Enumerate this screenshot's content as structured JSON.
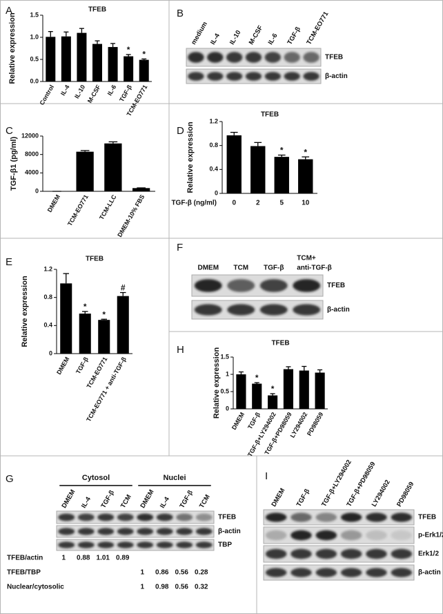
{
  "chart_data": [
    {
      "panel": "A",
      "type": "bar",
      "title": "TFEB",
      "ylabel": "Relative expression",
      "categories": [
        "Control",
        "IL-4",
        "IL-10",
        "M-CSF",
        "IL-6",
        "TGF-β",
        "TCM-EO771"
      ],
      "values": [
        1.01,
        1.02,
        1.1,
        0.85,
        0.78,
        0.57,
        0.49
      ],
      "errors": [
        0.12,
        0.1,
        0.1,
        0.07,
        0.08,
        0.04,
        0.02
      ],
      "significance": [
        null,
        null,
        null,
        null,
        null,
        "*",
        "*"
      ],
      "color": "#000000",
      "ylim": [
        0,
        1.5
      ],
      "yticks": [
        {
          "value": 0,
          "label": "0.0"
        },
        {
          "value": 0.5,
          "label": "0.5"
        },
        {
          "value": 1,
          "label": "1.0"
        },
        {
          "value": 1.5,
          "label": "1.5"
        }
      ]
    },
    {
      "panel": "C",
      "type": "bar",
      "ylabel": "TGF-β1 (pg/ml)",
      "categories": [
        "DMEM",
        "TCM-EO771",
        "TCM-LLC",
        "DMEM-10% FBS"
      ],
      "values": [
        0,
        8600,
        10400,
        700
      ],
      "errors": [
        0,
        250,
        350,
        50
      ],
      "color": "#000000",
      "ylim": [
        0,
        12000
      ],
      "yticks": [
        0,
        4000,
        8000,
        12000
      ]
    },
    {
      "panel": "D",
      "type": "bar",
      "title": "TFEB",
      "ylabel": "Relative expression",
      "xlabel": "TGF-β (ng/ml)",
      "categories": [
        "0",
        "2",
        "5",
        "10"
      ],
      "values": [
        0.97,
        0.79,
        0.61,
        0.57
      ],
      "errors": [
        0.05,
        0.06,
        0.03,
        0.04
      ],
      "significance": [
        null,
        null,
        "*",
        "*"
      ],
      "color": "#000000",
      "ylim": [
        0,
        1.2
      ],
      "yticks": [
        0,
        0.4,
        0.8,
        1.2
      ]
    },
    {
      "panel": "E",
      "type": "bar",
      "title": "TFEB",
      "ylabel": "Relative expression",
      "categories": [
        "DMEM",
        "TGF-β",
        "TCM-EO771",
        "TCM-EO771 + anti-TGF-β"
      ],
      "values": [
        1.0,
        0.57,
        0.48,
        0.82
      ],
      "errors": [
        0.14,
        0.03,
        0.01,
        0.05
      ],
      "significance": [
        null,
        "*",
        "*",
        "#"
      ],
      "color": "#000000",
      "ylim": [
        0,
        1.2
      ],
      "yticks": [
        0,
        0.4,
        0.8,
        1.2
      ]
    },
    {
      "panel": "H",
      "type": "bar",
      "title": "TFEB",
      "ylabel": "Relative expression",
      "categories": [
        "DMEM",
        "TGF-β",
        "TGF-β+LY294002",
        "TGF-β+PD98059",
        "LY294002",
        "PD98059"
      ],
      "values": [
        1.0,
        0.73,
        0.39,
        1.15,
        1.11,
        1.05
      ],
      "errors": [
        0.07,
        0.03,
        0.05,
        0.07,
        0.12,
        0.08
      ],
      "significance": [
        null,
        "*",
        "*",
        null,
        null,
        null
      ],
      "color": "#000000",
      "ylim": [
        0,
        1.5
      ],
      "yticks": [
        0,
        0.5,
        1,
        1.5
      ]
    }
  ],
  "blots": [
    {
      "panel": "B",
      "lanes": [
        "medium",
        "IL-4",
        "IL-10",
        "M-CSF",
        "IL-6",
        "TGF-β",
        "TCM-EO771"
      ],
      "rows": [
        "TFEB",
        "β-actin"
      ]
    },
    {
      "panel": "F",
      "lanes": [
        "DMEM",
        "TCM",
        "TGF-β",
        [
          "TCM+",
          "anti-TGF-β"
        ]
      ],
      "rows": [
        "TFEB",
        "β-actin"
      ]
    },
    {
      "panel": "G",
      "groups": [
        "Cytosol",
        "Nuclei"
      ],
      "lanes": [
        "DMEM",
        "IL-4",
        "TGF-β",
        "TCM",
        "DMEM",
        "IL-4",
        "TGF-β",
        "TCM"
      ],
      "rows": [
        "TFEB",
        "β-actin",
        "TBP"
      ],
      "quantification": [
        {
          "label": "TFEB/actin",
          "values": [
            1,
            0.88,
            1.01,
            0.89
          ]
        },
        {
          "label": "TFEB/TBP",
          "values": [
            1,
            0.86,
            0.56,
            0.28
          ]
        },
        {
          "label": "Nuclear/cytosolic",
          "values": [
            1,
            0.98,
            0.56,
            0.32
          ]
        }
      ]
    },
    {
      "panel": "I",
      "lanes": [
        "DMEM",
        "TGF-β",
        "TGF-β+LY294002",
        "TGF-β+PD98059",
        "LY294002",
        "PD98059"
      ],
      "rows": [
        "TFEB",
        "p-Erk1/2",
        "Erk1/2",
        "β-actin"
      ]
    }
  ]
}
